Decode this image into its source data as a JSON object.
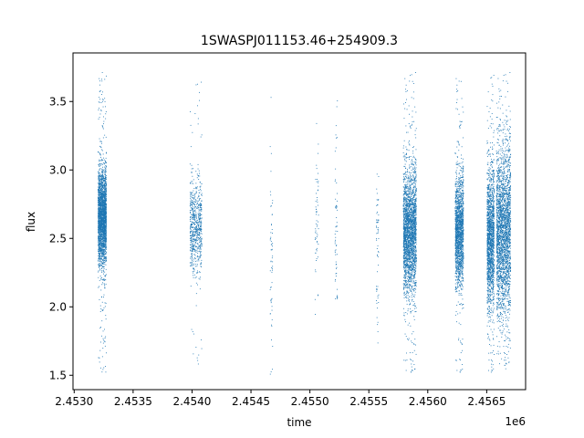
{
  "chart_data": {
    "type": "scatter",
    "title": "1SWASPJ011153.46+254909.3",
    "xlabel": "time",
    "ylabel": "flux",
    "x_offset_label": "1e6",
    "xlim": [
      2452990,
      2456830
    ],
    "ylim": [
      1.395,
      3.855
    ],
    "x_ticks": [
      2.453,
      2.4535,
      2.454,
      2.4545,
      2.455,
      2.4555,
      2.456,
      2.4565
    ],
    "x_tick_labels": [
      "2.4530",
      "2.4535",
      "2.4540",
      "2.4545",
      "2.4550",
      "2.4555",
      "2.4560",
      "2.4565"
    ],
    "y_ticks": [
      1.5,
      2.0,
      2.5,
      3.0,
      3.5
    ],
    "y_tick_labels": [
      "1.5",
      "2.0",
      "2.5",
      "3.0",
      "3.5"
    ],
    "grid": false,
    "marker_color": "#1f77b4",
    "series": [
      {
        "clusters": [
          {
            "x_start": 2453200,
            "x_end": 2453270,
            "y_center": 2.65,
            "y_spread": 0.17,
            "y_min": 1.52,
            "y_max": 3.72,
            "density": "very-high"
          },
          {
            "x_start": 2453980,
            "x_end": 2454080,
            "y_center": 2.6,
            "y_spread": 0.16,
            "y_min": 1.55,
            "y_max": 3.65,
            "density": "medium"
          },
          {
            "x_start": 2454660,
            "x_end": 2454680,
            "y_center": 2.3,
            "y_spread": 0.35,
            "y_min": 1.5,
            "y_max": 3.6,
            "density": "sparse"
          },
          {
            "x_start": 2455040,
            "x_end": 2455070,
            "y_center": 2.6,
            "y_spread": 0.3,
            "y_min": 1.55,
            "y_max": 3.48,
            "density": "sparse"
          },
          {
            "x_start": 2455210,
            "x_end": 2455230,
            "y_center": 2.55,
            "y_spread": 0.35,
            "y_min": 2.05,
            "y_max": 3.55,
            "density": "sparse"
          },
          {
            "x_start": 2455560,
            "x_end": 2455580,
            "y_center": 2.5,
            "y_spread": 0.3,
            "y_min": 1.52,
            "y_max": 3.0,
            "density": "sparse"
          },
          {
            "x_start": 2455790,
            "x_end": 2455900,
            "y_center": 2.55,
            "y_spread": 0.22,
            "y_min": 1.5,
            "y_max": 3.72,
            "density": "very-high"
          },
          {
            "x_start": 2456230,
            "x_end": 2456300,
            "y_center": 2.55,
            "y_spread": 0.2,
            "y_min": 1.5,
            "y_max": 3.72,
            "density": "high"
          },
          {
            "x_start": 2456500,
            "x_end": 2456560,
            "y_center": 2.5,
            "y_spread": 0.25,
            "y_min": 1.5,
            "y_max": 3.7,
            "density": "high"
          },
          {
            "x_start": 2456580,
            "x_end": 2456700,
            "y_center": 2.55,
            "y_spread": 0.3,
            "y_min": 1.55,
            "y_max": 3.72,
            "density": "very-high"
          }
        ]
      }
    ]
  }
}
